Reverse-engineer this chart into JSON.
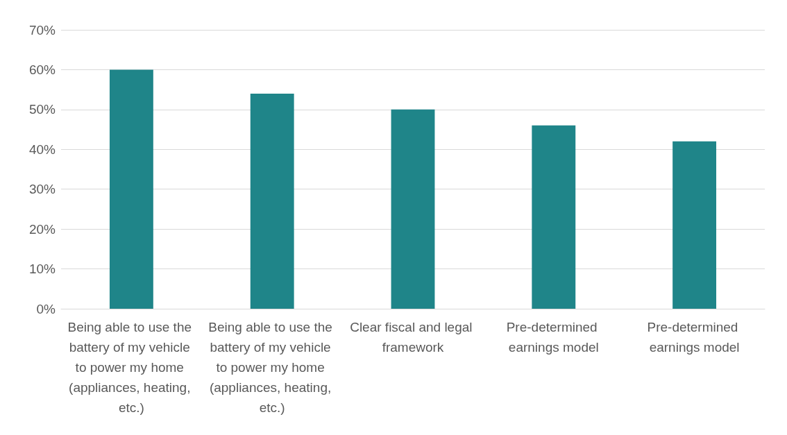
{
  "chart_data": {
    "type": "bar",
    "categories": [
      "Being able to use the battery of my vehicle to power my home (appliances, heating, etc.)",
      "Being able to use the battery of my vehicle to power my home (appliances, heating, etc.)",
      "Clear fiscal and legal framework",
      "Pre-determined earnings model",
      "Pre-determined earnings model"
    ],
    "values": [
      60,
      54,
      50,
      46,
      42
    ],
    "color": "#1f8589",
    "ylim": [
      0,
      70
    ],
    "yticks": [
      {
        "value": 0,
        "label": "0%"
      },
      {
        "value": 10,
        "label": "10%"
      },
      {
        "value": 20,
        "label": "20%"
      },
      {
        "value": 30,
        "label": "30%"
      },
      {
        "value": 40,
        "label": "40%"
      },
      {
        "value": 50,
        "label": "50%"
      },
      {
        "value": 60,
        "label": "60%"
      },
      {
        "value": 70,
        "label": "70%"
      }
    ],
    "grid": "y"
  }
}
